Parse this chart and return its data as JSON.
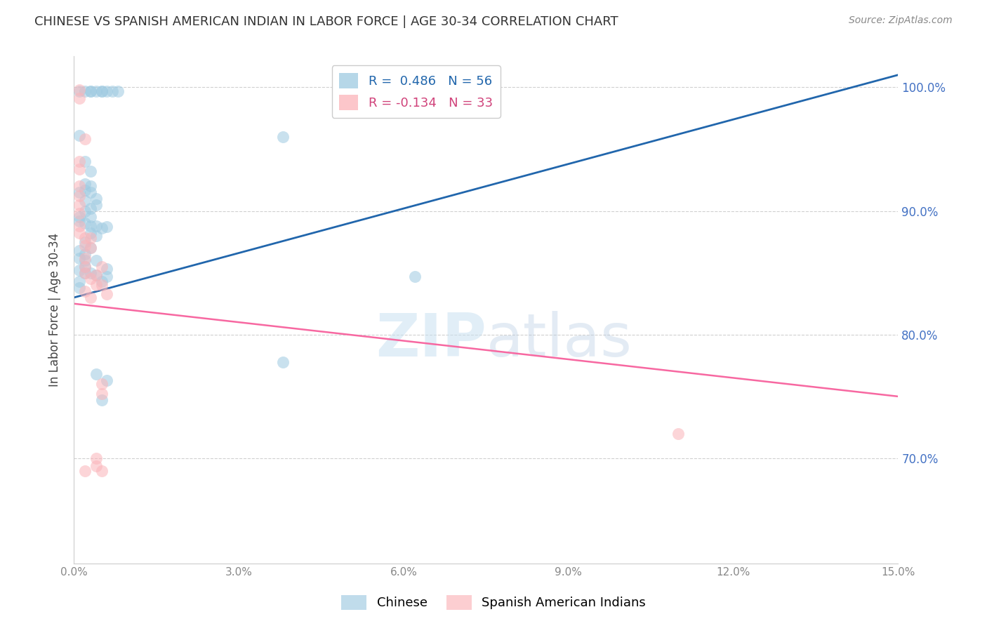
{
  "title": "CHINESE VS SPANISH AMERICAN INDIAN IN LABOR FORCE | AGE 30-34 CORRELATION CHART",
  "source": "Source: ZipAtlas.com",
  "ylabel": "In Labor Force | Age 30-34",
  "watermark": "ZIPatlas",
  "legend_chinese": "Chinese",
  "legend_spanish": "Spanish American Indians",
  "r_chinese": 0.486,
  "n_chinese": 56,
  "r_spanish": -0.134,
  "n_spanish": 33,
  "xlim": [
    0.0,
    0.15
  ],
  "ylim": [
    0.615,
    1.025
  ],
  "blue_color": "#9ecae1",
  "pink_color": "#fbb4b9",
  "trend_blue": "#2166ac",
  "trend_pink": "#f768a1",
  "ytick_vals": [
    0.7,
    0.8,
    0.9,
    1.0
  ],
  "ytick_labels": [
    "70.0%",
    "80.0%",
    "90.0%",
    "100.0%"
  ],
  "xtick_vals": [
    0.0,
    0.03,
    0.06,
    0.09,
    0.12,
    0.15
  ],
  "xtick_labels": [
    "0.0%",
    "3.0%",
    "6.0%",
    "9.0%",
    "12.0%",
    "15.0%"
  ],
  "blue_trend_x": [
    0.0,
    0.15
  ],
  "blue_trend_y": [
    0.83,
    1.01
  ],
  "pink_trend_x": [
    0.0,
    0.15
  ],
  "pink_trend_y": [
    0.825,
    0.75
  ],
  "chinese_points": [
    [
      0.001,
      0.997
    ],
    [
      0.002,
      0.997
    ],
    [
      0.003,
      0.997
    ],
    [
      0.003,
      0.997
    ],
    [
      0.004,
      0.997
    ],
    [
      0.005,
      0.997
    ],
    [
      0.005,
      0.997
    ],
    [
      0.006,
      0.997
    ],
    [
      0.007,
      0.997
    ],
    [
      0.008,
      0.997
    ],
    [
      0.001,
      0.961
    ],
    [
      0.002,
      0.94
    ],
    [
      0.003,
      0.932
    ],
    [
      0.002,
      0.922
    ],
    [
      0.002,
      0.917
    ],
    [
      0.003,
      0.92
    ],
    [
      0.003,
      0.915
    ],
    [
      0.004,
      0.91
    ],
    [
      0.004,
      0.905
    ],
    [
      0.002,
      0.9
    ],
    [
      0.003,
      0.895
    ],
    [
      0.001,
      0.892
    ],
    [
      0.002,
      0.89
    ],
    [
      0.003,
      0.888
    ],
    [
      0.004,
      0.888
    ],
    [
      0.005,
      0.886
    ],
    [
      0.006,
      0.887
    ],
    [
      0.003,
      0.882
    ],
    [
      0.004,
      0.88
    ],
    [
      0.001,
      0.868
    ],
    [
      0.001,
      0.862
    ],
    [
      0.002,
      0.865
    ],
    [
      0.002,
      0.86
    ],
    [
      0.001,
      0.852
    ],
    [
      0.002,
      0.85
    ],
    [
      0.003,
      0.85
    ],
    [
      0.004,
      0.848
    ],
    [
      0.001,
      0.843
    ],
    [
      0.001,
      0.838
    ],
    [
      0.006,
      0.853
    ],
    [
      0.006,
      0.847
    ],
    [
      0.004,
      0.768
    ],
    [
      0.006,
      0.763
    ],
    [
      0.005,
      0.747
    ],
    [
      0.038,
      0.96
    ],
    [
      0.038,
      0.778
    ],
    [
      0.062,
      0.847
    ],
    [
      0.001,
      0.895
    ],
    [
      0.005,
      0.843
    ],
    [
      0.002,
      0.875
    ],
    [
      0.003,
      0.87
    ],
    [
      0.004,
      0.86
    ],
    [
      0.002,
      0.855
    ],
    [
      0.001,
      0.915
    ],
    [
      0.002,
      0.908
    ],
    [
      0.003,
      0.902
    ]
  ],
  "spanish_points": [
    [
      0.001,
      0.998
    ],
    [
      0.001,
      0.991
    ],
    [
      0.002,
      0.958
    ],
    [
      0.001,
      0.94
    ],
    [
      0.001,
      0.934
    ],
    [
      0.001,
      0.92
    ],
    [
      0.001,
      0.912
    ],
    [
      0.001,
      0.905
    ],
    [
      0.001,
      0.898
    ],
    [
      0.001,
      0.888
    ],
    [
      0.001,
      0.882
    ],
    [
      0.002,
      0.878
    ],
    [
      0.002,
      0.872
    ],
    [
      0.003,
      0.878
    ],
    [
      0.003,
      0.87
    ],
    [
      0.002,
      0.862
    ],
    [
      0.002,
      0.855
    ],
    [
      0.002,
      0.85
    ],
    [
      0.003,
      0.845
    ],
    [
      0.004,
      0.848
    ],
    [
      0.004,
      0.84
    ],
    [
      0.002,
      0.835
    ],
    [
      0.003,
      0.83
    ],
    [
      0.005,
      0.84
    ],
    [
      0.006,
      0.833
    ],
    [
      0.005,
      0.855
    ],
    [
      0.005,
      0.76
    ],
    [
      0.005,
      0.752
    ],
    [
      0.004,
      0.7
    ],
    [
      0.004,
      0.694
    ],
    [
      0.002,
      0.69
    ],
    [
      0.005,
      0.69
    ],
    [
      0.11,
      0.72
    ]
  ]
}
